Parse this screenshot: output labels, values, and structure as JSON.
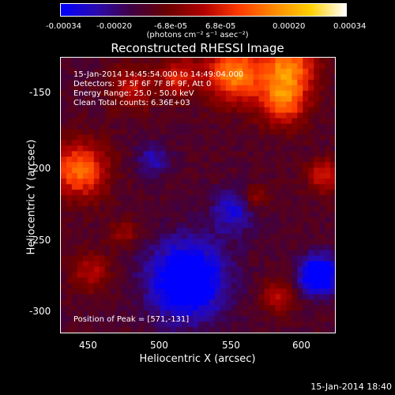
{
  "colorbar": {
    "stops": [
      "#0000ff",
      "#2a0ab0",
      "#400040",
      "#6b0000",
      "#b00000",
      "#ff3a00",
      "#ff8a00",
      "#ffd000",
      "#ffffff"
    ],
    "tick_labels": [
      "-0.00034",
      "-0.00020",
      "-6.8e-05",
      "6.8e-05",
      "0.00020",
      "0.00034"
    ],
    "units": "(photons cm⁻² s⁻¹ asec⁻²)"
  },
  "title": "Reconstructed RHESSI Image",
  "info": {
    "time_range": "15-Jan-2014 14:45:54.000 to 14:49:04.000",
    "detectors": "Detectors: 3F 5F 6F 7F 8F 9F, Att 0",
    "energy": "Energy Range: 25.0 - 50.0 keV",
    "clean": "Clean    Total counts: 6.36E+03"
  },
  "peak_label": "Position of Peak = [571,-131]",
  "x_axis": {
    "label": "Heliocentric X (arcsec)",
    "ticks": [
      "450",
      "500",
      "550",
      "600"
    ]
  },
  "y_axis": {
    "label": "Heliocentric Y (arcsec)",
    "ticks": [
      "-150",
      "-200",
      "-250",
      "-300"
    ]
  },
  "timestamp": "15-Jan-2014 18:40"
}
